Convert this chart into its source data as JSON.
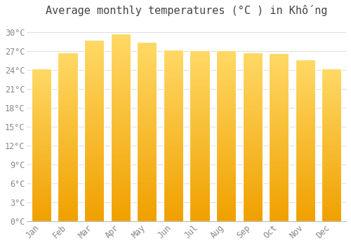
{
  "title": "Average monthly temperatures (°C ) in Khống",
  "months": [
    "Jan",
    "Feb",
    "Mar",
    "Apr",
    "May",
    "Jun",
    "Jul",
    "Aug",
    "Sep",
    "Oct",
    "Nov",
    "Dec"
  ],
  "values": [
    24.2,
    26.8,
    28.8,
    29.8,
    28.5,
    27.3,
    27.1,
    27.1,
    26.8,
    26.7,
    25.7,
    24.2
  ],
  "bar_color_top": "#FFD966",
  "bar_color_bottom": "#F0A000",
  "background_color": "#FFFFFF",
  "grid_color": "#DDDDDD",
  "yticks": [
    0,
    3,
    6,
    9,
    12,
    15,
    18,
    21,
    24,
    27,
    30
  ],
  "ylim": [
    0,
    32
  ],
  "title_fontsize": 11,
  "tick_fontsize": 8.5,
  "text_color": "#888888",
  "title_color": "#444444"
}
